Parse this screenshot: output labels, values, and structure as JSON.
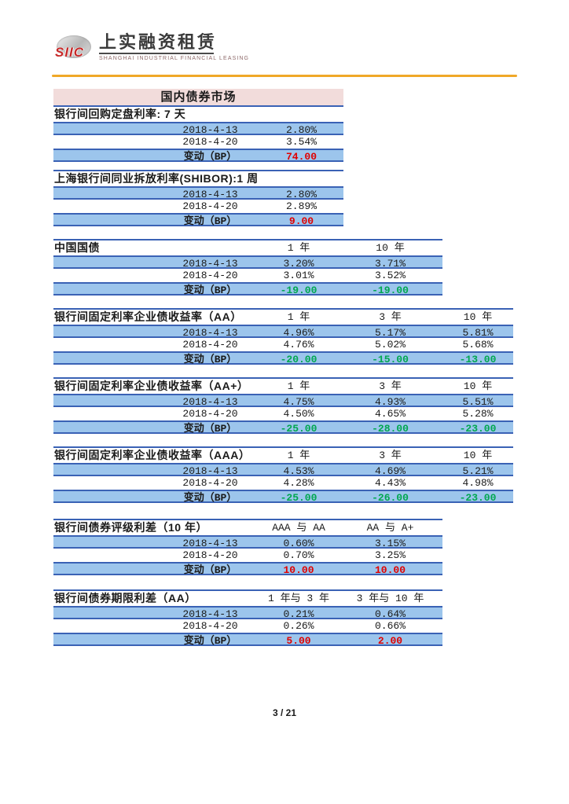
{
  "logo": {
    "mark_text": "SIIC",
    "company_cn": "上实融资租赁",
    "company_en": "SHANGHAI INDUSTRIAL FINANCIAL LEASING"
  },
  "section_header": "国内债券市场",
  "footer": {
    "page_number": "3 / 21"
  },
  "colors": {
    "row_fill_blue": "#9CC5EC",
    "border_blue": "#3A62B5",
    "change_up_red": "#E00000",
    "change_down_green": "#00A750",
    "section_header_pink": "#F2DCDB",
    "rule_orange": "#F0A828",
    "logo_red": "#C62828"
  },
  "tables": [
    {
      "title": "银行间回购定盘利率: 7 天",
      "columns": [],
      "change_direction": "up",
      "rows": [
        {
          "label": "2018-4-13",
          "values": [
            "2.80%"
          ]
        },
        {
          "label": "2018-4-20",
          "values": [
            "3.54%"
          ]
        },
        {
          "label": "变动（BP）",
          "values": [
            "74.00"
          ],
          "change": true
        }
      ]
    },
    {
      "title": "上海银行间同业拆放利率(SHIBOR):1 周",
      "columns": [],
      "change_direction": "up",
      "rows": [
        {
          "label": "2018-4-13",
          "values": [
            "2.80%"
          ]
        },
        {
          "label": "2018-4-20",
          "values": [
            "2.89%"
          ]
        },
        {
          "label": "变动（BP）",
          "values": [
            "9.00"
          ],
          "change": true
        }
      ]
    },
    {
      "title": "中国国债",
      "columns": [
        "1 年",
        "10 年"
      ],
      "change_direction": "down",
      "rows": [
        {
          "label": "2018-4-13",
          "values": [
            "3.20%",
            "3.71%"
          ]
        },
        {
          "label": "2018-4-20",
          "values": [
            "3.01%",
            "3.52%"
          ]
        },
        {
          "label": "变动（BP）",
          "values": [
            "-19.00",
            "-19.00"
          ],
          "change": true
        }
      ]
    },
    {
      "title": "银行间固定利率企业债收益率（AA）",
      "columns": [
        "1 年",
        "3 年",
        "10 年"
      ],
      "change_direction": "down",
      "rows": [
        {
          "label": "2018-4-13",
          "values": [
            "4.96%",
            "5.17%",
            "5.81%"
          ]
        },
        {
          "label": "2018-4-20",
          "values": [
            "4.76%",
            "5.02%",
            "5.68%"
          ]
        },
        {
          "label": "变动（BP）",
          "values": [
            "-20.00",
            "-15.00",
            "-13.00"
          ],
          "change": true
        }
      ]
    },
    {
      "title": "银行间固定利率企业债收益率（AA+）",
      "columns": [
        "1 年",
        "3 年",
        "10 年"
      ],
      "change_direction": "down",
      "rows": [
        {
          "label": "2018-4-13",
          "values": [
            "4.75%",
            "4.93%",
            "5.51%"
          ]
        },
        {
          "label": "2018-4-20",
          "values": [
            "4.50%",
            "4.65%",
            "5.28%"
          ]
        },
        {
          "label": "变动（BP）",
          "values": [
            "-25.00",
            "-28.00",
            "-23.00"
          ],
          "change": true
        }
      ]
    },
    {
      "title": "银行间固定利率企业债收益率（AAA）",
      "columns": [
        "1 年",
        "3 年",
        "10 年"
      ],
      "change_direction": "down",
      "rows": [
        {
          "label": "2018-4-13",
          "values": [
            "4.53%",
            "4.69%",
            "5.21%"
          ]
        },
        {
          "label": "2018-4-20",
          "values": [
            "4.28%",
            "4.43%",
            "4.98%"
          ]
        },
        {
          "label": "变动（BP）",
          "values": [
            "-25.00",
            "-26.00",
            "-23.00"
          ],
          "change": true
        }
      ]
    },
    {
      "title": "银行间债券评级利差（10 年）",
      "columns": [
        "AAA 与 AA",
        "AA 与 A+"
      ],
      "change_direction": "up",
      "rows": [
        {
          "label": "2018-4-13",
          "values": [
            "0.60%",
            "3.15%"
          ]
        },
        {
          "label": "2018-4-20",
          "values": [
            "0.70%",
            "3.25%"
          ]
        },
        {
          "label": "变动（BP）",
          "values": [
            "10.00",
            "10.00"
          ],
          "change": true
        }
      ]
    },
    {
      "title": "银行间债券期限利差（AA）",
      "columns": [
        "1 年与 3 年",
        "3 年与 10 年"
      ],
      "change_direction": "up",
      "rows": [
        {
          "label": "2018-4-13",
          "values": [
            "0.21%",
            "0.64%"
          ],
          "partial_underline": true
        },
        {
          "label": "2018-4-20",
          "values": [
            "0.26%",
            "0.66%"
          ]
        },
        {
          "label": "变动（BP）",
          "values": [
            "5.00",
            "2.00"
          ],
          "change": true
        }
      ]
    }
  ]
}
